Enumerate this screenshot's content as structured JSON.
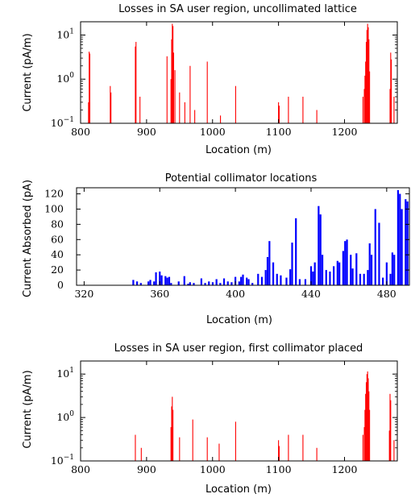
{
  "chart_data": [
    {
      "type": "bar",
      "title": "Losses in SA user region, uncollimated lattice",
      "xlabel": "Location (m)",
      "ylabel": "Current (pA/m)",
      "yscale": "log",
      "xlim": [
        800,
        1280
      ],
      "ylim": [
        0.1,
        20
      ],
      "xticks": [
        "800",
        "900",
        "1000",
        "1100",
        "1200"
      ],
      "yticks": [
        {
          "value": 0.1,
          "base": "10",
          "exp": "−1"
        },
        {
          "value": 1,
          "base": "10",
          "exp": "0"
        },
        {
          "value": 10,
          "base": "10",
          "exp": "1"
        }
      ],
      "color": "#ff0000",
      "x": [
        812,
        813,
        814,
        845,
        846,
        883,
        884,
        890,
        931,
        937,
        938,
        939,
        940,
        941,
        943,
        950,
        958,
        966,
        973,
        992,
        1012,
        1035,
        1100,
        1101,
        1115,
        1137,
        1158,
        1228,
        1230,
        1231,
        1232,
        1233,
        1234,
        1235,
        1236,
        1237,
        1238,
        1269,
        1270,
        1271,
        1275
      ],
      "values": [
        0.3,
        4.2,
        3.8,
        0.7,
        0.5,
        5.5,
        7.0,
        0.4,
        3.3,
        1.0,
        8.0,
        18.0,
        16.0,
        4.0,
        1.6,
        0.5,
        0.3,
        2.0,
        0.2,
        2.5,
        0.15,
        0.7,
        0.3,
        0.25,
        0.4,
        0.4,
        0.2,
        0.4,
        0.6,
        1.2,
        2.5,
        7.0,
        13.0,
        18.0,
        15.0,
        8.0,
        1.5,
        0.6,
        4.0,
        2.8,
        0.4
      ]
    },
    {
      "type": "bar",
      "title": "Potential collimator locations",
      "xlabel": "Location (m)",
      "ylabel": "Current Absorbed (pA)",
      "xlim": [
        316,
        492
      ],
      "ylim": [
        0,
        128
      ],
      "xticks": [
        "320",
        "360",
        "400",
        "440",
        "480"
      ],
      "yticks": [
        "0",
        "20",
        "40",
        "60",
        "80",
        "100",
        "120"
      ],
      "color": "#0000ff",
      "x": [
        346,
        348,
        350,
        354,
        355,
        357,
        358,
        360,
        361,
        363,
        364,
        365,
        366,
        370,
        373,
        375,
        376,
        378,
        382,
        384,
        386,
        388,
        390,
        392,
        394,
        396,
        398,
        400,
        402,
        403,
        404,
        406,
        407,
        409,
        412,
        414,
        416,
        417,
        418,
        420,
        422,
        424,
        427,
        429,
        430,
        432,
        434,
        437,
        440,
        441,
        442,
        444,
        445,
        446,
        448,
        450,
        452,
        454,
        455,
        457,
        458,
        459,
        461,
        462,
        464,
        466,
        468,
        470,
        471,
        472,
        474,
        476,
        478,
        480,
        482,
        483,
        484,
        486,
        487,
        488,
        490,
        491
      ],
      "values": [
        7,
        5,
        3,
        5,
        7,
        5,
        17,
        18,
        13,
        12,
        10,
        11,
        3,
        5,
        12,
        2,
        4,
        3,
        9,
        3,
        5,
        4,
        8,
        3,
        9,
        5,
        4,
        11,
        5,
        11,
        14,
        10,
        8,
        3,
        15,
        11,
        20,
        37,
        58,
        30,
        15,
        13,
        10,
        21,
        56,
        88,
        8,
        8,
        25,
        18,
        30,
        104,
        93,
        40,
        20,
        18,
        25,
        32,
        30,
        45,
        58,
        60,
        40,
        22,
        42,
        15,
        15,
        20,
        55,
        40,
        100,
        82,
        10,
        30,
        15,
        43,
        40,
        125,
        120,
        100,
        113,
        110
      ]
    },
    {
      "type": "bar",
      "title": "Losses in SA user region, first collimator placed",
      "xlabel": "Location (m)",
      "ylabel": "Current (pA/m)",
      "yscale": "log",
      "xlim": [
        800,
        1280
      ],
      "ylim": [
        0.1,
        20
      ],
      "xticks": [
        "800",
        "900",
        "1000",
        "1100",
        "1200"
      ],
      "yticks": [
        {
          "value": 0.1,
          "base": "10",
          "exp": "−1"
        },
        {
          "value": 1,
          "base": "10",
          "exp": "0"
        },
        {
          "value": 10,
          "base": "10",
          "exp": "1"
        }
      ],
      "color": "#ff0000",
      "x": [
        883,
        892,
        937,
        938,
        939,
        940,
        950,
        970,
        992,
        1010,
        1035,
        1100,
        1101,
        1115,
        1137,
        1158,
        1228,
        1230,
        1231,
        1232,
        1233,
        1234,
        1235,
        1236,
        1237,
        1238,
        1268,
        1269,
        1270,
        1275
      ],
      "values": [
        0.4,
        0.2,
        0.6,
        1.8,
        3.0,
        1.5,
        0.35,
        0.9,
        0.35,
        0.25,
        0.8,
        0.3,
        0.22,
        0.4,
        0.4,
        0.2,
        0.4,
        0.6,
        1.5,
        3.5,
        6.5,
        10.0,
        11.5,
        8.0,
        4.0,
        1.5,
        0.5,
        3.5,
        2.5,
        0.3
      ]
    }
  ]
}
